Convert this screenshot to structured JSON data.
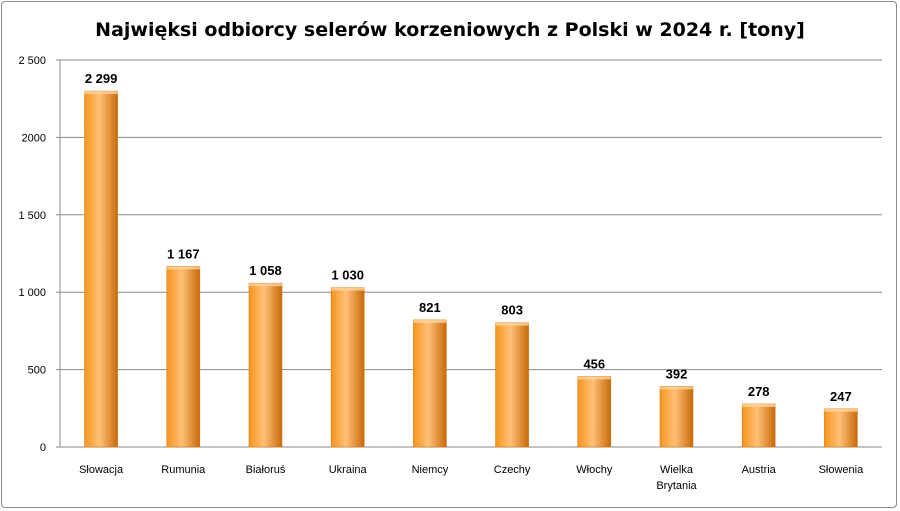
{
  "chart_data": {
    "type": "bar",
    "title": "Najwięksi odbiorcy selerów korzeniowych z Polski w 2024 r. [tony]",
    "xlabel": "",
    "ylabel": "",
    "ylim": [
      0,
      2500
    ],
    "yticks": [
      0,
      500,
      1000,
      1500,
      2000,
      2500
    ],
    "ytick_labels": [
      "0",
      "500",
      "1 000",
      "1 500",
      "2000",
      "2 500"
    ],
    "grid": true,
    "legend": "none",
    "categories": [
      [
        "Słowacja"
      ],
      [
        "Rumunia"
      ],
      [
        "Białoruś"
      ],
      [
        "Ukraina"
      ],
      [
        "Niemcy"
      ],
      [
        "Czechy"
      ],
      [
        "Włochy"
      ],
      [
        "Wielka",
        "Brytania"
      ],
      [
        "Austria"
      ],
      [
        "Słowenia"
      ]
    ],
    "values": [
      2299,
      1167,
      1058,
      1030,
      821,
      803,
      456,
      392,
      278,
      247
    ],
    "value_labels": [
      "2 299",
      "1 167",
      "1 058",
      "1 030",
      "821",
      "803",
      "456",
      "392",
      "278",
      "247"
    ],
    "colors": {
      "bar_light": "#ffc177",
      "bar_mid": "#f7941d",
      "bar_dark": "#c86a0a",
      "grid": "#8a8a8a",
      "axis": "#8a8a8a"
    }
  }
}
